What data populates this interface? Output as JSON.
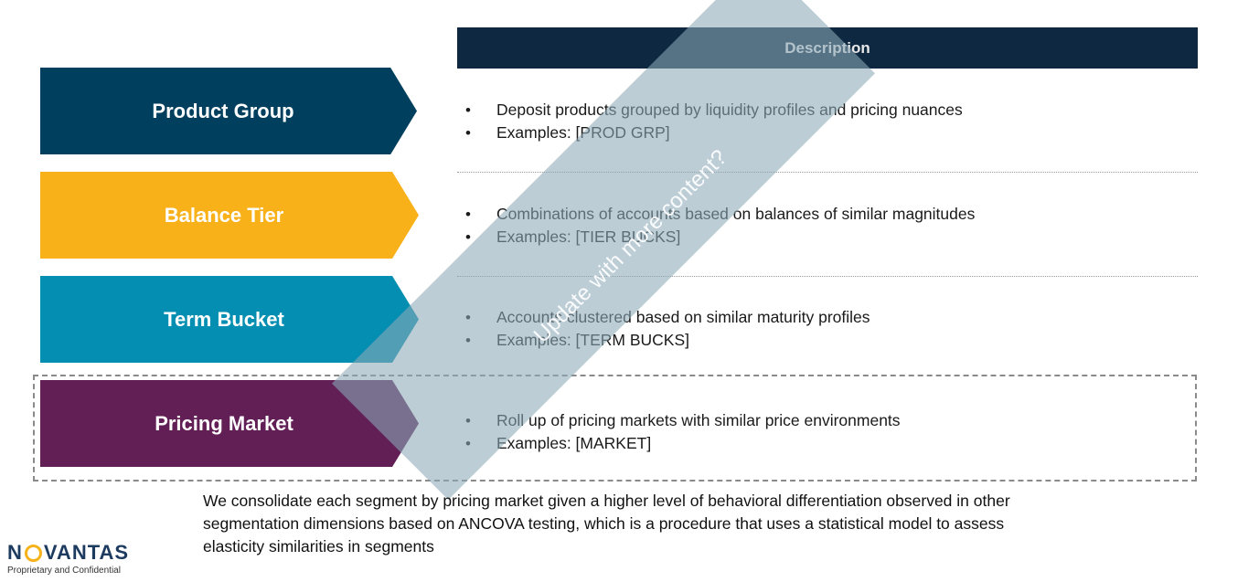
{
  "segments": [
    {
      "label": "Product Group",
      "color": "#003f5e"
    },
    {
      "label": "Balance Tier",
      "color": "#f9b11a"
    },
    {
      "label": "Term Bucket",
      "color": "#048fb2"
    },
    {
      "label": "Pricing Market",
      "color": "#611f56"
    }
  ],
  "description_header": "Description",
  "descriptions": [
    {
      "line1": "Deposit products grouped by liquidity profiles and pricing nuances",
      "line2": "Examples: [PROD GRP]"
    },
    {
      "line1": "Combinations of accounts based on balances of similar magnitudes",
      "line2": "Examples: [TIER BUCKS]"
    },
    {
      "line1": "Accounts clustered based on similar maturity profiles",
      "line2": "Examples: [TERM BUCKS]"
    },
    {
      "line1": "Roll up of pricing markets with similar price environments",
      "line2": "Examples: [MARKET]"
    }
  ],
  "watermark": "Update with more content?",
  "footnote": "We consolidate each segment by pricing market given a higher level of behavioral differentiation observed in other segmentation dimensions based on ANCOVA testing, which is a procedure that uses a statistical model to assess elasticity similarities in segments",
  "logo": {
    "left": "N",
    "right": "VANTAS",
    "tagline": "Proprietary and Confidential"
  }
}
